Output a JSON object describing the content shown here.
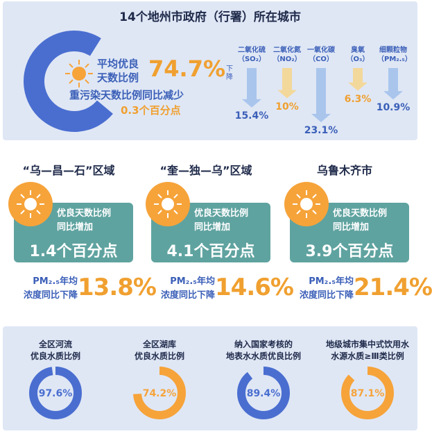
{
  "top": {
    "title": "14个地州市政府（行署）所在城市",
    "excellent_label_1": "平均优良",
    "excellent_label_2": "天数比例",
    "excellent_value": "74.7%",
    "heavy_label": "重污染天数比例同比减少",
    "heavy_value": "0.3个百分点",
    "decline_label": "下降",
    "pollutants": [
      {
        "name": "二氧化硫",
        "formula": "（SO₂）",
        "value": "15.4%",
        "color": "#a9c5ec",
        "drop": 0.55
      },
      {
        "name": "二氧化氮",
        "formula": "（NO₂）",
        "value": "10%",
        "color": "#f3d89b",
        "drop": 0.38
      },
      {
        "name": "一氧化碳",
        "formula": "（CO）",
        "value": "23.1%",
        "color": "#a9c5ec",
        "drop": 0.82
      },
      {
        "name": "臭氧",
        "formula": "（O₃）",
        "value": "6.3%",
        "color": "#f3d89b",
        "drop": 0.24
      },
      {
        "name": "细颗粒物",
        "formula": "（PM₂.₅）",
        "value": "10.9%",
        "color": "#a9c5ec",
        "drop": 0.4
      }
    ]
  },
  "regions": [
    {
      "title": "“乌—昌—石”区域",
      "label_1": "优良天数比例",
      "label_2": "同比增加",
      "value": "1.4个百分点",
      "pm_label_1": "PM₂.₅年均",
      "pm_label_2": "浓度同比下降",
      "pm_value": "13.8%"
    },
    {
      "title": "“奎—独—乌”区域",
      "label_1": "优良天数比例",
      "label_2": "同比增加",
      "value": "4.1个百分点",
      "pm_label_1": "PM₂.₅年均",
      "pm_label_2": "浓度同比下降",
      "pm_value": "14.6%"
    },
    {
      "title": "乌鲁木齐市",
      "label_1": "优良天数比例",
      "label_2": "同比增加",
      "value": "3.9个百分点",
      "pm_label_1": "PM₂.₅年均",
      "pm_label_2": "浓度同比下降",
      "pm_value": "21.4%"
    }
  ],
  "water": [
    {
      "label": "全区河流<br>优良水质比例",
      "label_1": "全区河流",
      "label_2": "优良水质比例",
      "value": "97.6%",
      "fraction": 0.976,
      "color": "#4a6ed0"
    },
    {
      "label_1": "全区湖库",
      "label_2": "优良水质比例",
      "value": "74.2%",
      "fraction": 0.742,
      "color": "#f6a33a"
    },
    {
      "label_1": "纳入国家考核的",
      "label_2": "地表水水质优良比例",
      "value": "89.4%",
      "fraction": 0.894,
      "color": "#4a6ed0"
    },
    {
      "label_1": "地级城市集中式饮用水",
      "label_2": "水源水质≥Ⅲ类比例",
      "value": "87.1%",
      "fraction": 0.871,
      "color": "#f6a33a"
    }
  ],
  "colors": {
    "blue": "#3b5fb8",
    "orange": "#f0a030",
    "teal": "#5fa3a0",
    "panel": "#dfe7f5"
  }
}
